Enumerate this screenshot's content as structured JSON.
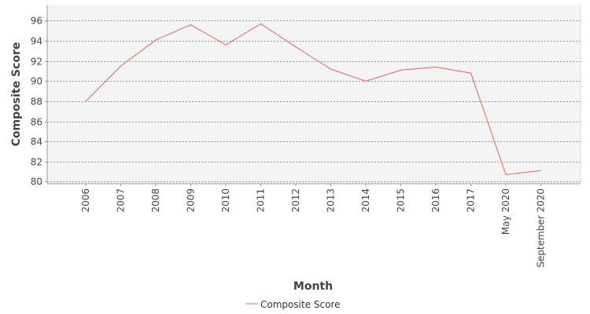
{
  "chart_data": {
    "type": "line",
    "title": "",
    "xlabel": "Month",
    "ylabel": "Composite Score",
    "categories": [
      "2006",
      "2007",
      "2008",
      "2009",
      "2010",
      "2011",
      "2012",
      "2013",
      "2014",
      "2015",
      "2016",
      "2017",
      "May 2020",
      "September 2020"
    ],
    "series": [
      {
        "name": "Composite Score",
        "color": "#f0625a",
        "values": [
          88.0,
          91.5,
          94.1,
          95.6,
          93.6,
          95.7,
          93.4,
          91.2,
          90.0,
          91.1,
          91.4,
          90.8,
          80.7,
          81.1
        ]
      }
    ],
    "ylim": [
      79.8,
      97.6
    ],
    "yticks": [
      80,
      82,
      84,
      86,
      88,
      90,
      92,
      94,
      96
    ],
    "grid": true,
    "legend_position": "bottom-center",
    "plot_background": "#f4f4f4",
    "grid_color": "#7a7a7a"
  }
}
